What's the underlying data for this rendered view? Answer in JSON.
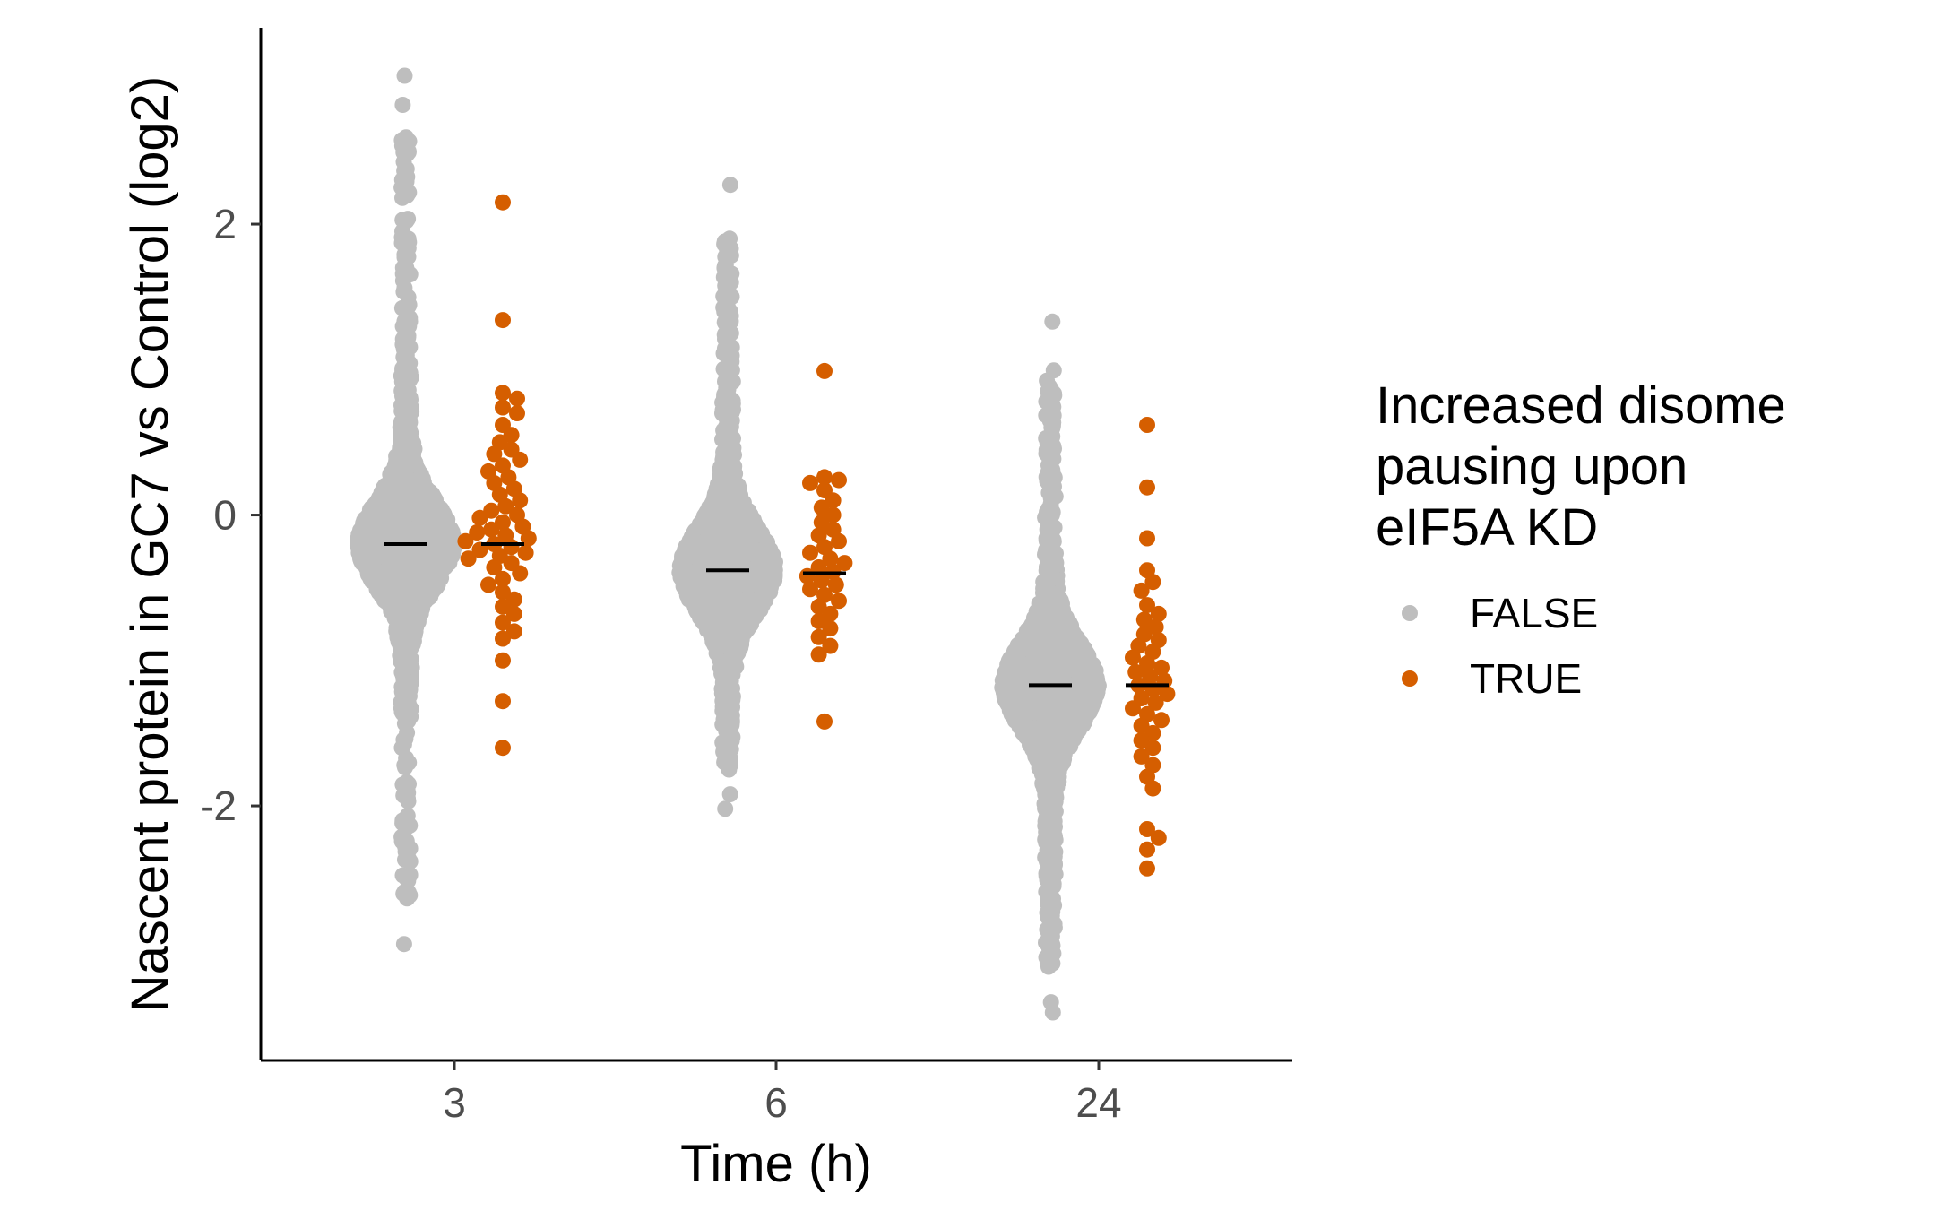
{
  "chart_data": {
    "type": "scatter",
    "subtype": "beeswarm",
    "xlabel": "Time (h)",
    "ylabel": "Nascent protein in GC7 vs Control (log2)",
    "categories": [
      "3",
      "6",
      "24"
    ],
    "y_ticks": [
      "2",
      "0",
      "-2"
    ],
    "ylim": [
      -3.75,
      3.35
    ],
    "grid": false,
    "legend": {
      "title_lines": [
        "Increased disome",
        "pausing upon",
        "eIF5A KD"
      ],
      "position": "right",
      "entries": [
        {
          "label": "FALSE",
          "color": "#BEBEBE"
        },
        {
          "label": "TRUE",
          "color": "#D55E00"
        }
      ]
    },
    "series": [
      {
        "name": "FALSE",
        "color": "#BEBEBE",
        "groups": [
          {
            "category": "3",
            "median": -0.2,
            "min": -2.95,
            "max": 3.02,
            "outliers": [
              3.02,
              2.82,
              2.38,
              2.18,
              2.02,
              1.95,
              1.9,
              1.7,
              -1.85,
              -1.95,
              -2.1,
              -2.28,
              -2.95
            ]
          },
          {
            "category": "6",
            "median": -0.38,
            "min": -2.02,
            "max": 2.27,
            "outliers": [
              2.27,
              1.9,
              1.88,
              1.5,
              1.25,
              1.2,
              -1.7,
              -1.75,
              -1.92,
              -2.02
            ]
          },
          {
            "category": "24",
            "median": -1.17,
            "min": -3.42,
            "max": 1.33,
            "outliers": [
              1.33,
              0.85,
              0.75,
              0.7,
              0.65,
              -2.85,
              -2.95,
              -3.35,
              -3.42
            ]
          }
        ]
      },
      {
        "name": "TRUE",
        "color": "#D55E00",
        "groups": [
          {
            "category": "3",
            "median": -0.2,
            "min": -1.6,
            "max": 2.15,
            "points": [
              2.15,
              1.34,
              0.84,
              0.8,
              0.74,
              0.7,
              0.62,
              0.55,
              0.5,
              0.45,
              0.42,
              0.38,
              0.34,
              0.3,
              0.26,
              0.22,
              0.18,
              0.14,
              0.1,
              0.06,
              0.03,
              0.0,
              -0.02,
              -0.05,
              -0.08,
              -0.1,
              -0.12,
              -0.14,
              -0.16,
              -0.18,
              -0.2,
              -0.22,
              -0.24,
              -0.26,
              -0.28,
              -0.3,
              -0.33,
              -0.36,
              -0.4,
              -0.44,
              -0.48,
              -0.53,
              -0.58,
              -0.63,
              -0.68,
              -0.74,
              -0.8,
              -0.85,
              -1.0,
              -1.28,
              -1.6
            ]
          },
          {
            "category": "6",
            "median": -0.4,
            "min": -1.42,
            "max": 0.99,
            "points": [
              0.99,
              0.26,
              0.24,
              0.22,
              0.17,
              0.1,
              0.05,
              0.0,
              -0.05,
              -0.1,
              -0.14,
              -0.18,
              -0.22,
              -0.26,
              -0.3,
              -0.33,
              -0.36,
              -0.39,
              -0.42,
              -0.45,
              -0.48,
              -0.51,
              -0.55,
              -0.59,
              -0.63,
              -0.68,
              -0.73,
              -0.78,
              -0.84,
              -0.9,
              -0.96,
              -1.42
            ]
          },
          {
            "category": "24",
            "median": -1.17,
            "min": -2.43,
            "max": 0.62,
            "points": [
              0.62,
              0.19,
              -0.16,
              -0.38,
              -0.46,
              -0.52,
              -0.62,
              -0.68,
              -0.72,
              -0.77,
              -0.82,
              -0.86,
              -0.9,
              -0.94,
              -0.98,
              -1.02,
              -1.05,
              -1.08,
              -1.11,
              -1.14,
              -1.17,
              -1.2,
              -1.23,
              -1.26,
              -1.29,
              -1.33,
              -1.37,
              -1.41,
              -1.45,
              -1.5,
              -1.55,
              -1.6,
              -1.66,
              -1.72,
              -1.8,
              -1.88,
              -2.16,
              -2.22,
              -2.3,
              -2.43
            ]
          }
        ]
      }
    ]
  }
}
